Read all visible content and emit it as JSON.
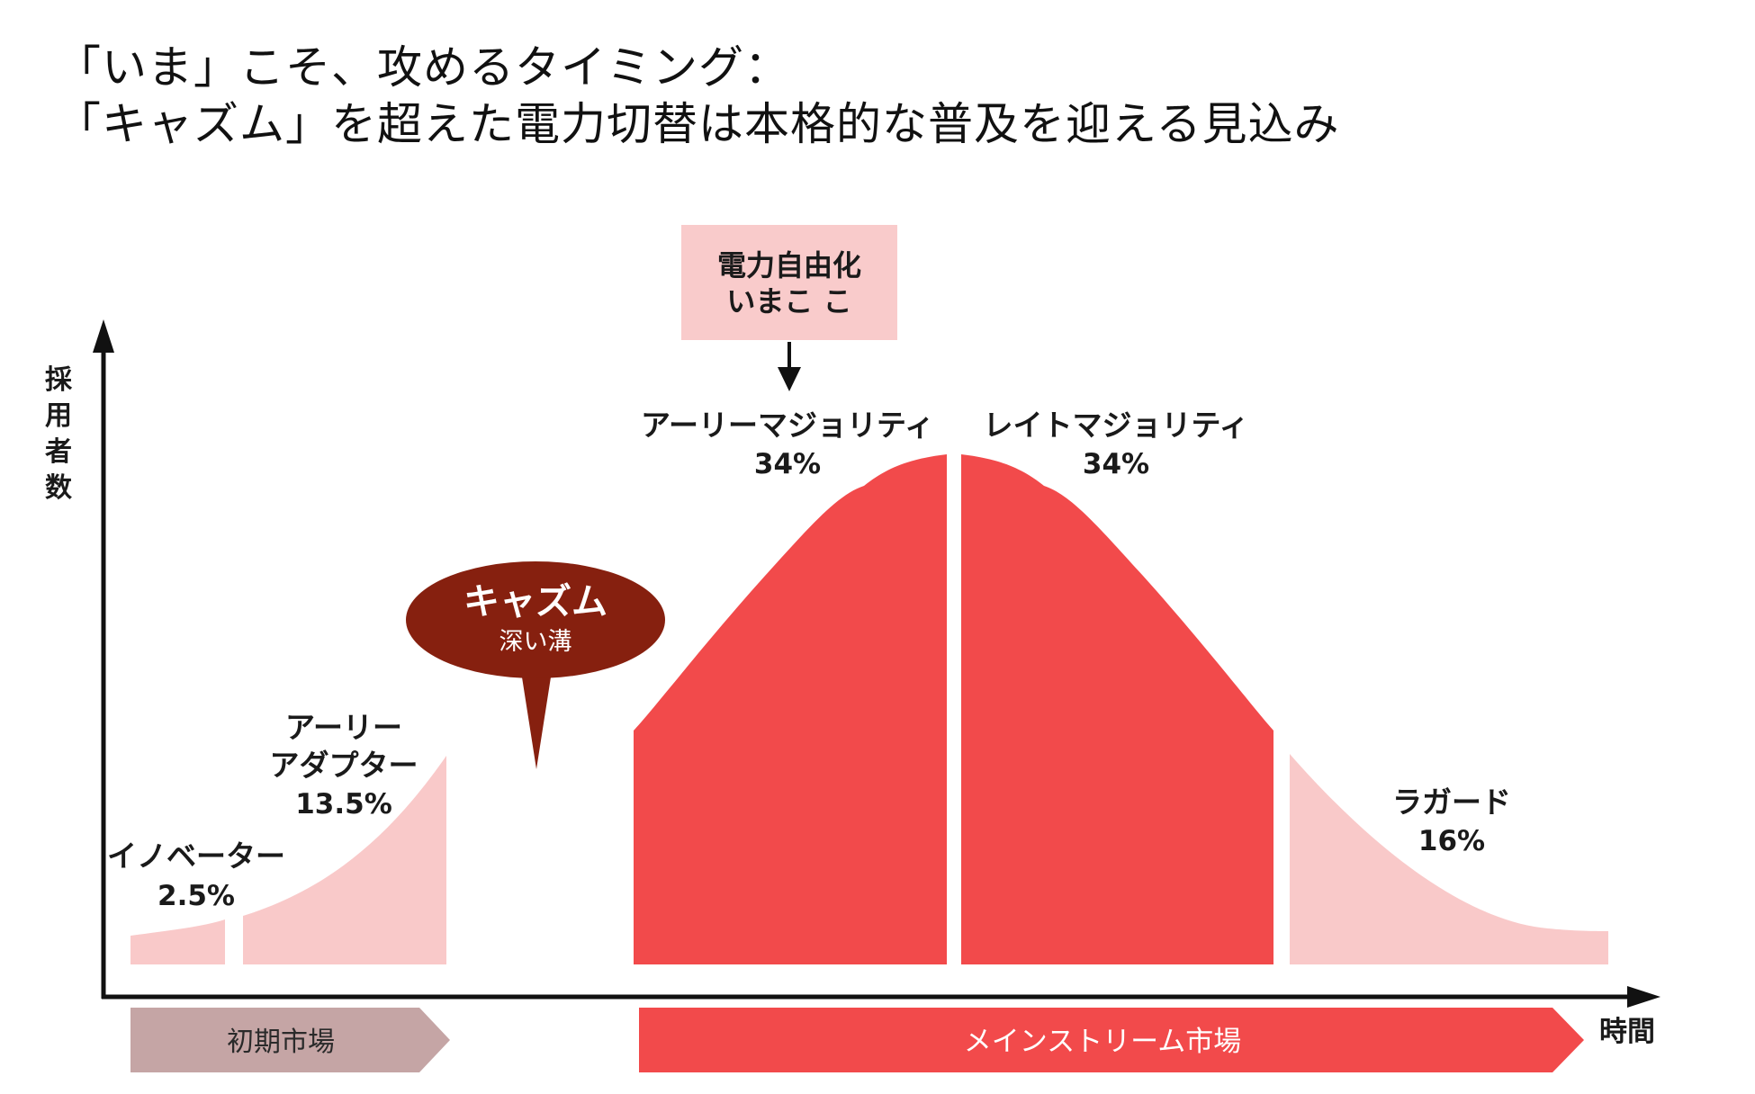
{
  "title": {
    "line1": "「いま」こそ、攻めるタイミング：",
    "line2": "「キャズム」を超えた電力切替は本格的な普及を迎える見込み"
  },
  "axes": {
    "y_label": [
      "採",
      "用",
      "者",
      "数"
    ],
    "x_label": "時間"
  },
  "callout": {
    "line1": "電力自由化",
    "line2": "いまこ こ"
  },
  "chasm": {
    "title": "キャズム",
    "subtitle": "深い溝"
  },
  "segments": {
    "innovators": {
      "name": "イノベーター",
      "pct": "2.5%"
    },
    "early_adopters": {
      "name_line1": "アーリー",
      "name_line2": "アダプター",
      "pct": "13.5%"
    },
    "early_majority": {
      "name": "アーリーマジョリティ",
      "pct": "34%"
    },
    "late_majority": {
      "name": "レイトマジョリティ",
      "pct": "34%"
    },
    "laggards": {
      "name": "ラガード",
      "pct": "16%"
    }
  },
  "markets": {
    "early": "初期市場",
    "mainstream": "メインストリーム市場"
  },
  "colors": {
    "light_segment": "#f9c9c9",
    "main_segment": "#f24a4b",
    "callout_box": "#f9cbcb",
    "chasm_bubble": "#86200f",
    "early_market_arrow": "#c5a5a5",
    "mainstream_arrow": "#f24a4b"
  }
}
